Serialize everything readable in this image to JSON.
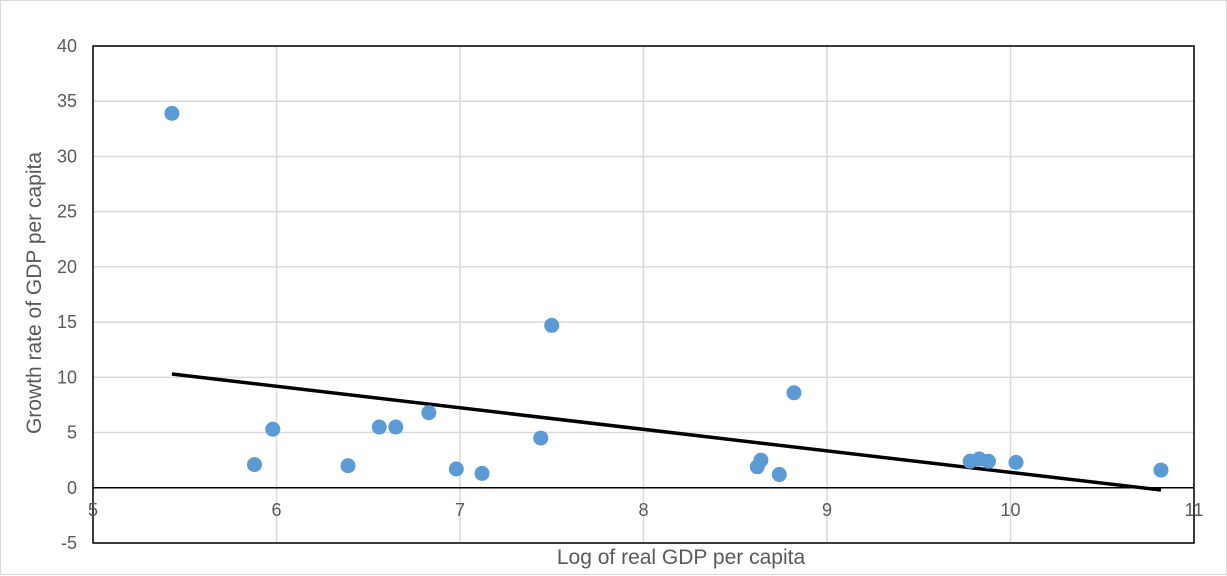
{
  "chart_data": {
    "type": "scatter",
    "title": "",
    "xlabel": "Log of real GDP per capita",
    "ylabel": "Growth rate of GDP per capita",
    "xlim": [
      5,
      11
    ],
    "ylim": [
      -5,
      40
    ],
    "x_ticks": [
      5,
      6,
      7,
      8,
      9,
      10,
      11
    ],
    "y_ticks": [
      -5,
      0,
      5,
      10,
      15,
      20,
      25,
      30,
      35,
      40
    ],
    "x_tick_labels": [
      "5",
      "6",
      "7",
      "8",
      "9",
      "10",
      "11"
    ],
    "y_tick_labels": [
      "-5",
      "0",
      "5",
      "10",
      "15",
      "20",
      "25",
      "30",
      "35",
      "40"
    ],
    "grid": true,
    "legend": "none",
    "colors": {
      "points": "#5b9bd5",
      "trendline": "#000000",
      "grid": "#d9d9d9",
      "axis": "#000000"
    },
    "series": [
      {
        "x": [
          5.43,
          5.88,
          5.98,
          6.39,
          6.56,
          6.65,
          6.83,
          6.98,
          7.12,
          7.44,
          7.5,
          8.62,
          8.64,
          8.74,
          8.82,
          9.78,
          9.83,
          9.88,
          10.03,
          10.82
        ],
        "y": [
          33.9,
          2.1,
          5.3,
          2.0,
          5.5,
          5.5,
          6.8,
          1.7,
          1.3,
          4.5,
          14.7,
          1.9,
          2.5,
          1.2,
          8.6,
          2.4,
          2.6,
          2.4,
          2.3,
          1.6
        ]
      }
    ],
    "trendline": {
      "x": [
        5.43,
        10.82
      ],
      "y": [
        10.3,
        -0.2
      ]
    }
  }
}
